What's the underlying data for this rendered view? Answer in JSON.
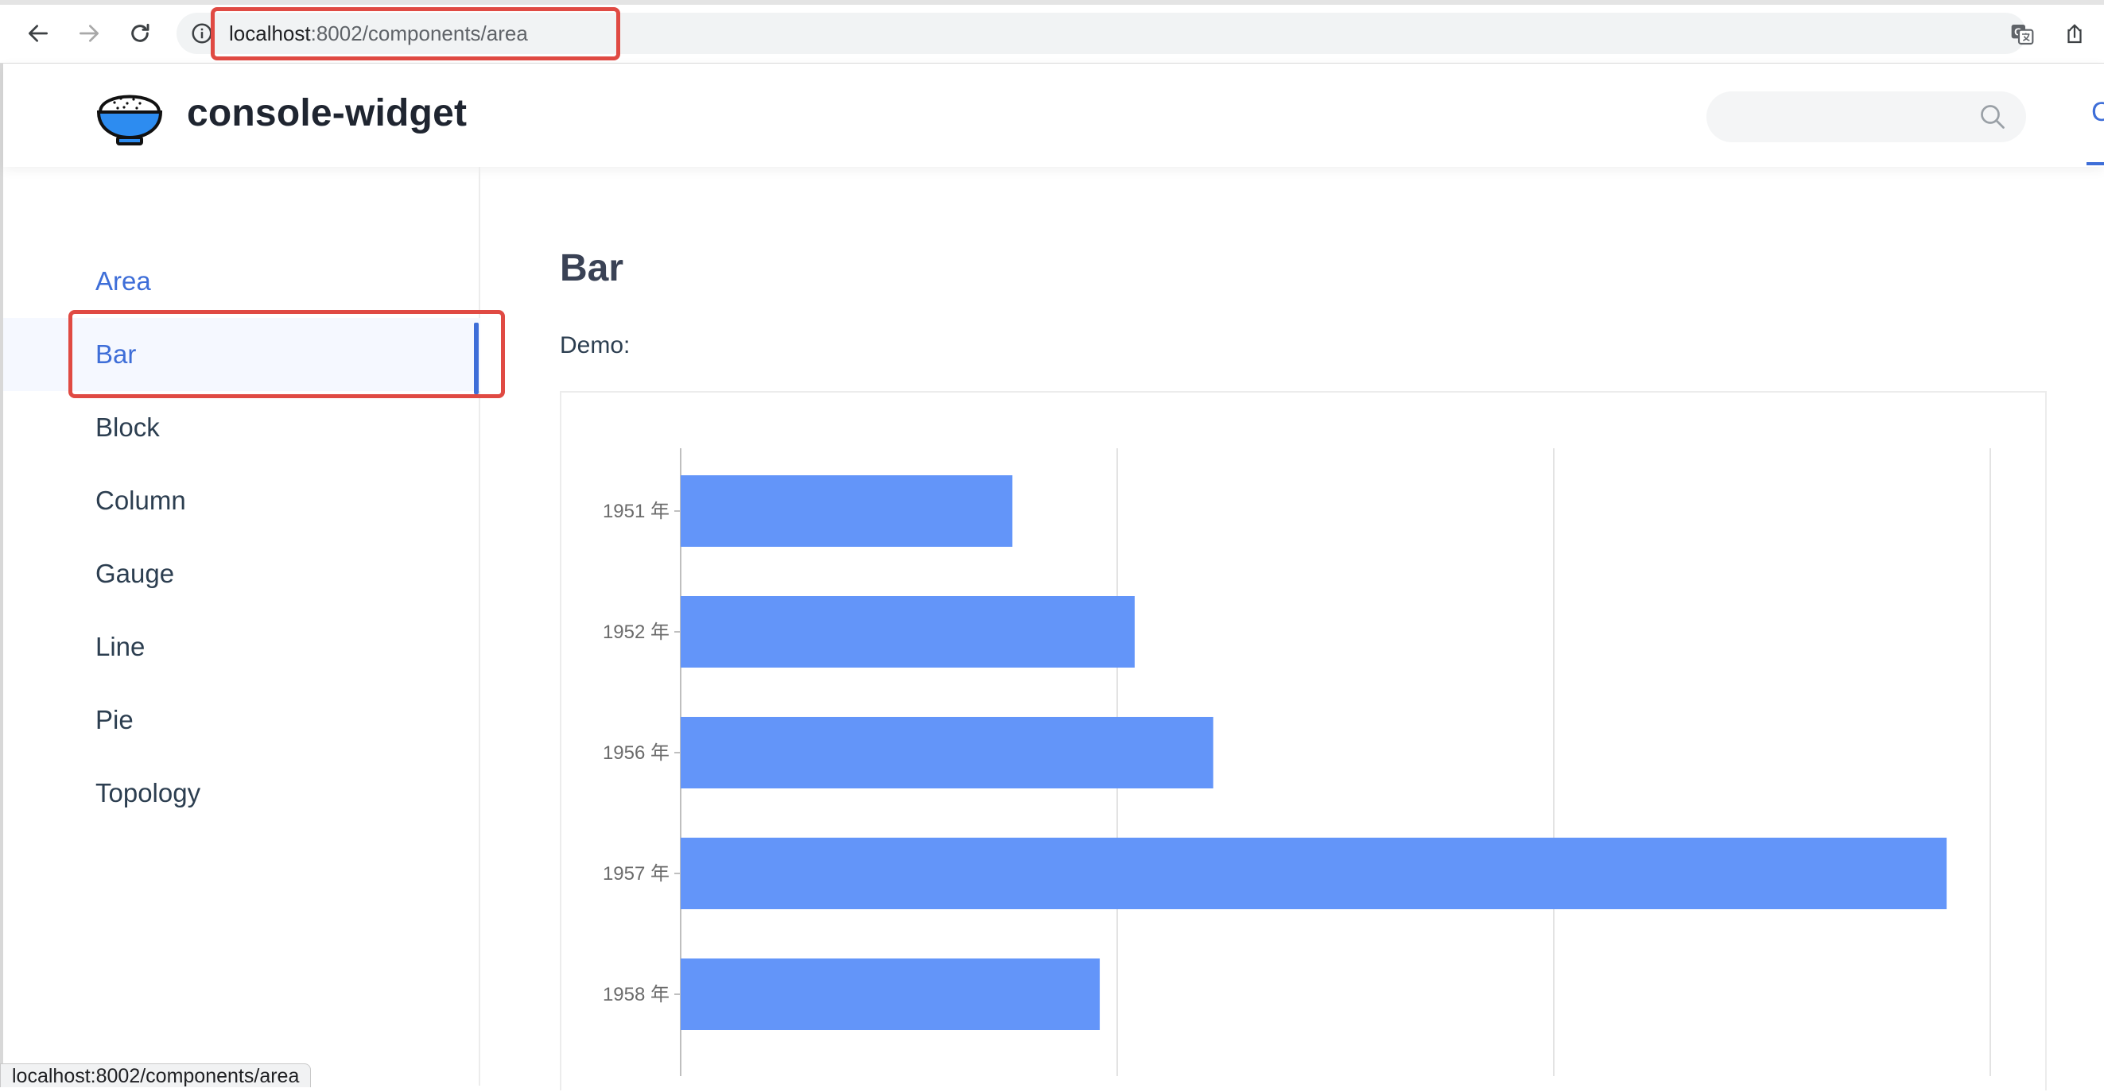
{
  "browser": {
    "url_host": "localhost",
    "url_rest": ":8002/components/area",
    "status_url": "localhost:8002/components/area"
  },
  "header": {
    "site_title": "console-widget",
    "nav_visible_fragment": "C"
  },
  "sidebar": {
    "items": [
      {
        "label": "Area"
      },
      {
        "label": "Bar"
      },
      {
        "label": "Block"
      },
      {
        "label": "Column"
      },
      {
        "label": "Gauge"
      },
      {
        "label": "Line"
      },
      {
        "label": "Pie"
      },
      {
        "label": "Topology"
      }
    ],
    "selected": "Bar"
  },
  "main": {
    "title": "Bar",
    "demo_label": "Demo:"
  },
  "colors": {
    "accent": "#3e6ed8",
    "bar_fill": "#6395f9",
    "highlight_box": "#e04a43"
  },
  "chart_data": {
    "type": "bar",
    "orientation": "horizontal",
    "categories": [
      "1951 年",
      "1952 年",
      "1956 年",
      "1957 年",
      "1958 年"
    ],
    "values": [
      38,
      52,
      61,
      145,
      48
    ],
    "xticks": [
      0,
      50,
      100,
      150
    ],
    "xlim": [
      0,
      150
    ],
    "grid": true
  }
}
